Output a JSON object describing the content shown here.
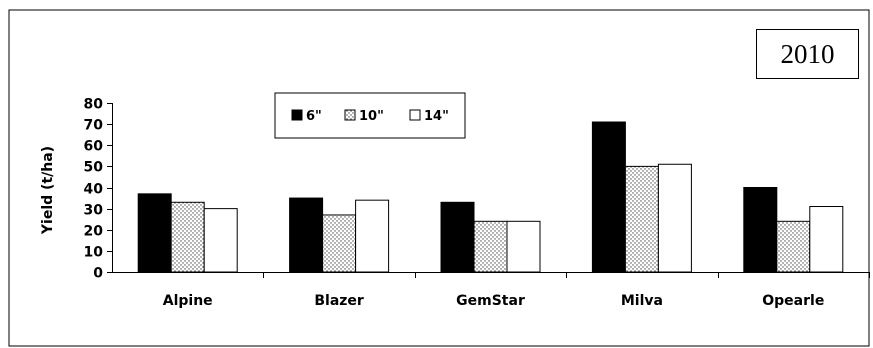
{
  "year_label": "2010",
  "chart_data": {
    "type": "bar",
    "title": "",
    "xlabel": "",
    "ylabel": "Yield (t/ha)",
    "ylim": [
      0,
      80
    ],
    "yticks": [
      0,
      10,
      20,
      30,
      40,
      50,
      60,
      70,
      80
    ],
    "categories": [
      "Alpine",
      "Blazer",
      "GemStar",
      "Milva",
      "Opearle"
    ],
    "series": [
      {
        "name": "6\"",
        "values": [
          37,
          35,
          33,
          71,
          40
        ],
        "color": "#000000",
        "fill": "solid"
      },
      {
        "name": "10\"",
        "values": [
          33,
          27,
          24,
          50,
          24
        ],
        "color": "#ffffff",
        "fill": "dotted"
      },
      {
        "name": "14\"",
        "values": [
          30,
          34,
          24,
          51,
          31
        ],
        "color": "#ffffff",
        "fill": "white"
      }
    ],
    "grid": false,
    "legend_position": "top-left inside"
  }
}
